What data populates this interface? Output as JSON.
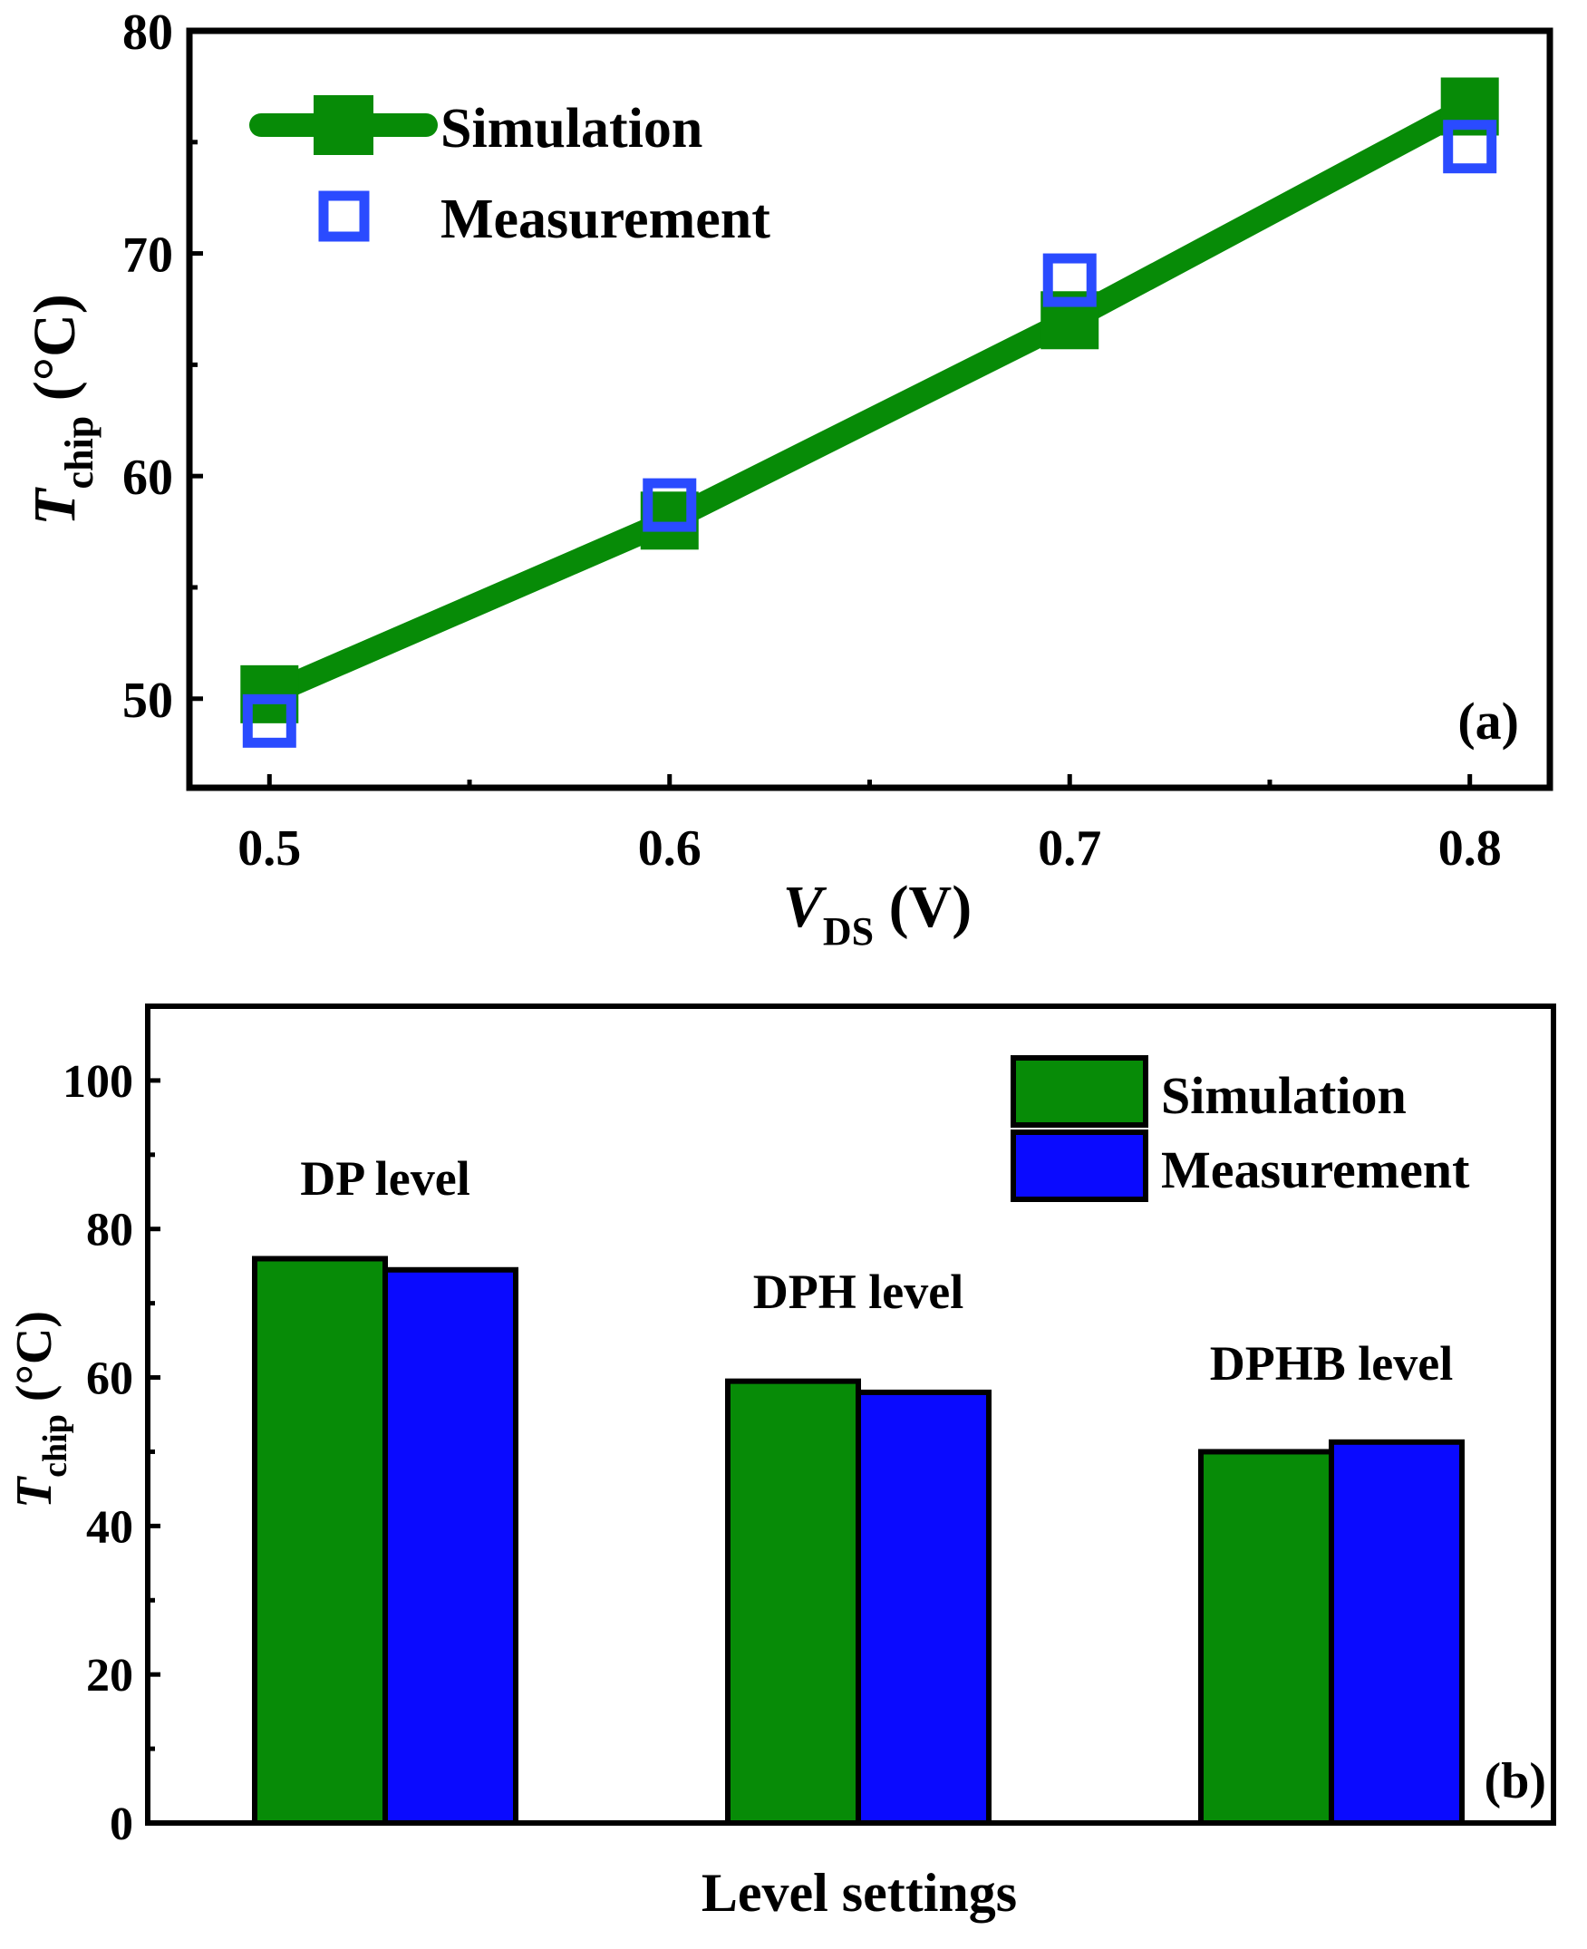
{
  "colors": {
    "simulation": "#078b07",
    "measurement_marker": "#2a4bff",
    "measurement_bar": "#0a0aff",
    "axis": "#000000"
  },
  "chart_data": [
    {
      "id": "a",
      "type": "line",
      "panel_label": "(a)",
      "xlabel": {
        "main": "V",
        "sub": "DS",
        "unit": " (V)"
      },
      "ylabel": {
        "main": "T",
        "sub": "chip",
        "unit": " (°C)"
      },
      "xlim": [
        0.48,
        0.82
      ],
      "ylim": [
        46,
        80
      ],
      "xticks": [
        0.5,
        0.6,
        0.7,
        0.8
      ],
      "xtick_labels": [
        "0.5",
        "0.6",
        "0.7",
        "0.8"
      ],
      "x_minor_ticks": [
        0.55,
        0.65,
        0.75
      ],
      "yticks": [
        50,
        60,
        70,
        80
      ],
      "ytick_labels": [
        "50",
        "60",
        "70",
        "80"
      ],
      "y_minor_ticks": [
        55,
        65,
        75
      ],
      "legend_position": "top-left",
      "series": [
        {
          "name": "Simulation",
          "style": "line-square-filled",
          "x": [
            0.5,
            0.6,
            0.7,
            0.8
          ],
          "y": [
            50.2,
            58.0,
            67.0,
            76.6
          ]
        },
        {
          "name": "Measurement",
          "style": "square-open",
          "x": [
            0.5,
            0.6,
            0.7,
            0.8
          ],
          "y": [
            49.0,
            58.7,
            68.8,
            74.8
          ]
        }
      ]
    },
    {
      "id": "b",
      "type": "bar",
      "panel_label": "(b)",
      "xlabel": {
        "main": "Level settings"
      },
      "ylabel": {
        "main": "T",
        "sub": "chip",
        "unit": " (°C)"
      },
      "ylim": [
        0,
        110
      ],
      "yticks": [
        0,
        20,
        40,
        60,
        80,
        100
      ],
      "ytick_labels": [
        "0",
        "20",
        "40",
        "60",
        "80",
        "100"
      ],
      "y_minor_ticks": [
        10,
        30,
        50,
        70,
        90,
        110
      ],
      "categories": [
        "DP level",
        "DPH level",
        "DPHB level"
      ],
      "legend_position": "top-right",
      "series": [
        {
          "name": "Simulation",
          "values": [
            76.0,
            59.5,
            50.0
          ]
        },
        {
          "name": "Measurement",
          "values": [
            74.5,
            58.0,
            51.3
          ]
        }
      ]
    }
  ]
}
